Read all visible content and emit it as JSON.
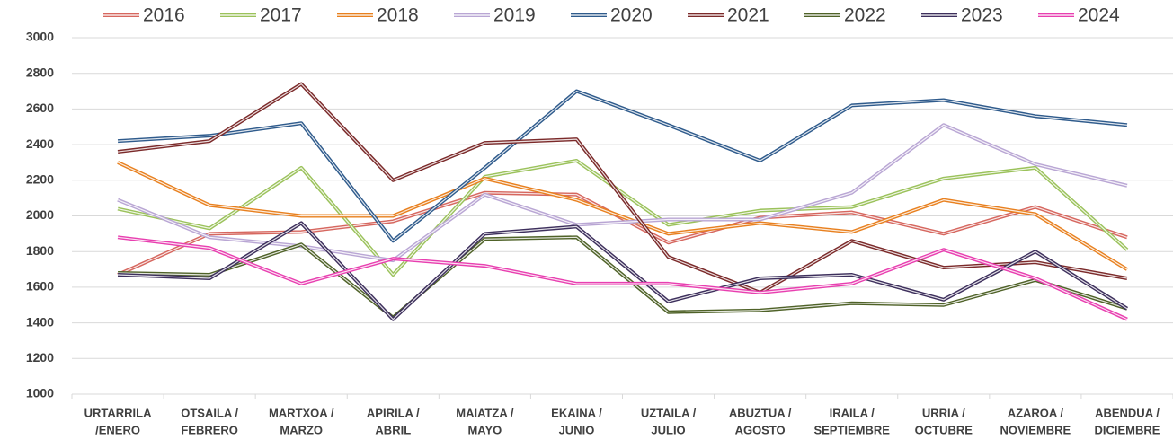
{
  "chart_data": {
    "type": "line",
    "categories": [
      [
        "URTARRILA",
        "/ENERO"
      ],
      [
        "OTSAILA /",
        "FEBRERO"
      ],
      [
        "MARTXOA /",
        "MARZO"
      ],
      [
        "APIRILA /",
        "ABRIL"
      ],
      [
        "MAIATZA /",
        "MAYO"
      ],
      [
        "EKAINA /",
        "JUNIO"
      ],
      [
        "UZTAILA /",
        "JULIO"
      ],
      [
        "ABUZTUA /",
        "AGOSTO"
      ],
      [
        "IRAILA /",
        "SEPTIEMBRE"
      ],
      [
        "URRIA /",
        "OCTUBRE"
      ],
      [
        "AZAROA /",
        "NOVIEMBRE"
      ],
      [
        "ABENDUA /",
        "DICIEMBRE"
      ]
    ],
    "series": [
      {
        "name": "2016",
        "color": "#d6675f",
        "values": [
          1670,
          1900,
          1910,
          1970,
          2130,
          2120,
          1850,
          1990,
          2020,
          1900,
          2050,
          1880
        ]
      },
      {
        "name": "2017",
        "color": "#9bc25b",
        "values": [
          2040,
          1930,
          2270,
          1670,
          2220,
          2310,
          1950,
          2030,
          2050,
          2210,
          2270,
          1810
        ]
      },
      {
        "name": "2018",
        "color": "#e8801f",
        "values": [
          2300,
          2060,
          2000,
          2000,
          2210,
          2090,
          1900,
          1960,
          1910,
          2090,
          2010,
          1700
        ]
      },
      {
        "name": "2019",
        "color": "#b9a6d4",
        "values": [
          2090,
          1880,
          1830,
          1750,
          2120,
          1950,
          1980,
          1980,
          2130,
          2510,
          2290,
          2170
        ]
      },
      {
        "name": "2020",
        "color": "#2f5b8c",
        "values": [
          2420,
          2450,
          2520,
          1860,
          2270,
          2700,
          2510,
          2310,
          2620,
          2650,
          2560,
          2510
        ]
      },
      {
        "name": "2021",
        "color": "#7b2a2a",
        "values": [
          2360,
          2420,
          2740,
          2200,
          2410,
          2430,
          1770,
          1570,
          1860,
          1710,
          1740,
          1650
        ]
      },
      {
        "name": "2022",
        "color": "#4f6228",
        "values": [
          1680,
          1670,
          1840,
          1430,
          1870,
          1880,
          1460,
          1470,
          1510,
          1500,
          1640,
          1480
        ]
      },
      {
        "name": "2023",
        "color": "#3d2f5c",
        "values": [
          1670,
          1650,
          1960,
          1420,
          1900,
          1940,
          1520,
          1650,
          1670,
          1530,
          1800,
          1480
        ]
      },
      {
        "name": "2024",
        "color": "#e83fb0",
        "values": [
          1880,
          1820,
          1620,
          1760,
          1720,
          1620,
          1620,
          1570,
          1620,
          1810,
          1650,
          1420
        ]
      }
    ],
    "ylim": [
      1000,
      3000
    ],
    "yticks": [
      1000,
      1200,
      1400,
      1600,
      1800,
      2000,
      2200,
      2400,
      2600,
      2800,
      3000
    ],
    "grid": true
  }
}
